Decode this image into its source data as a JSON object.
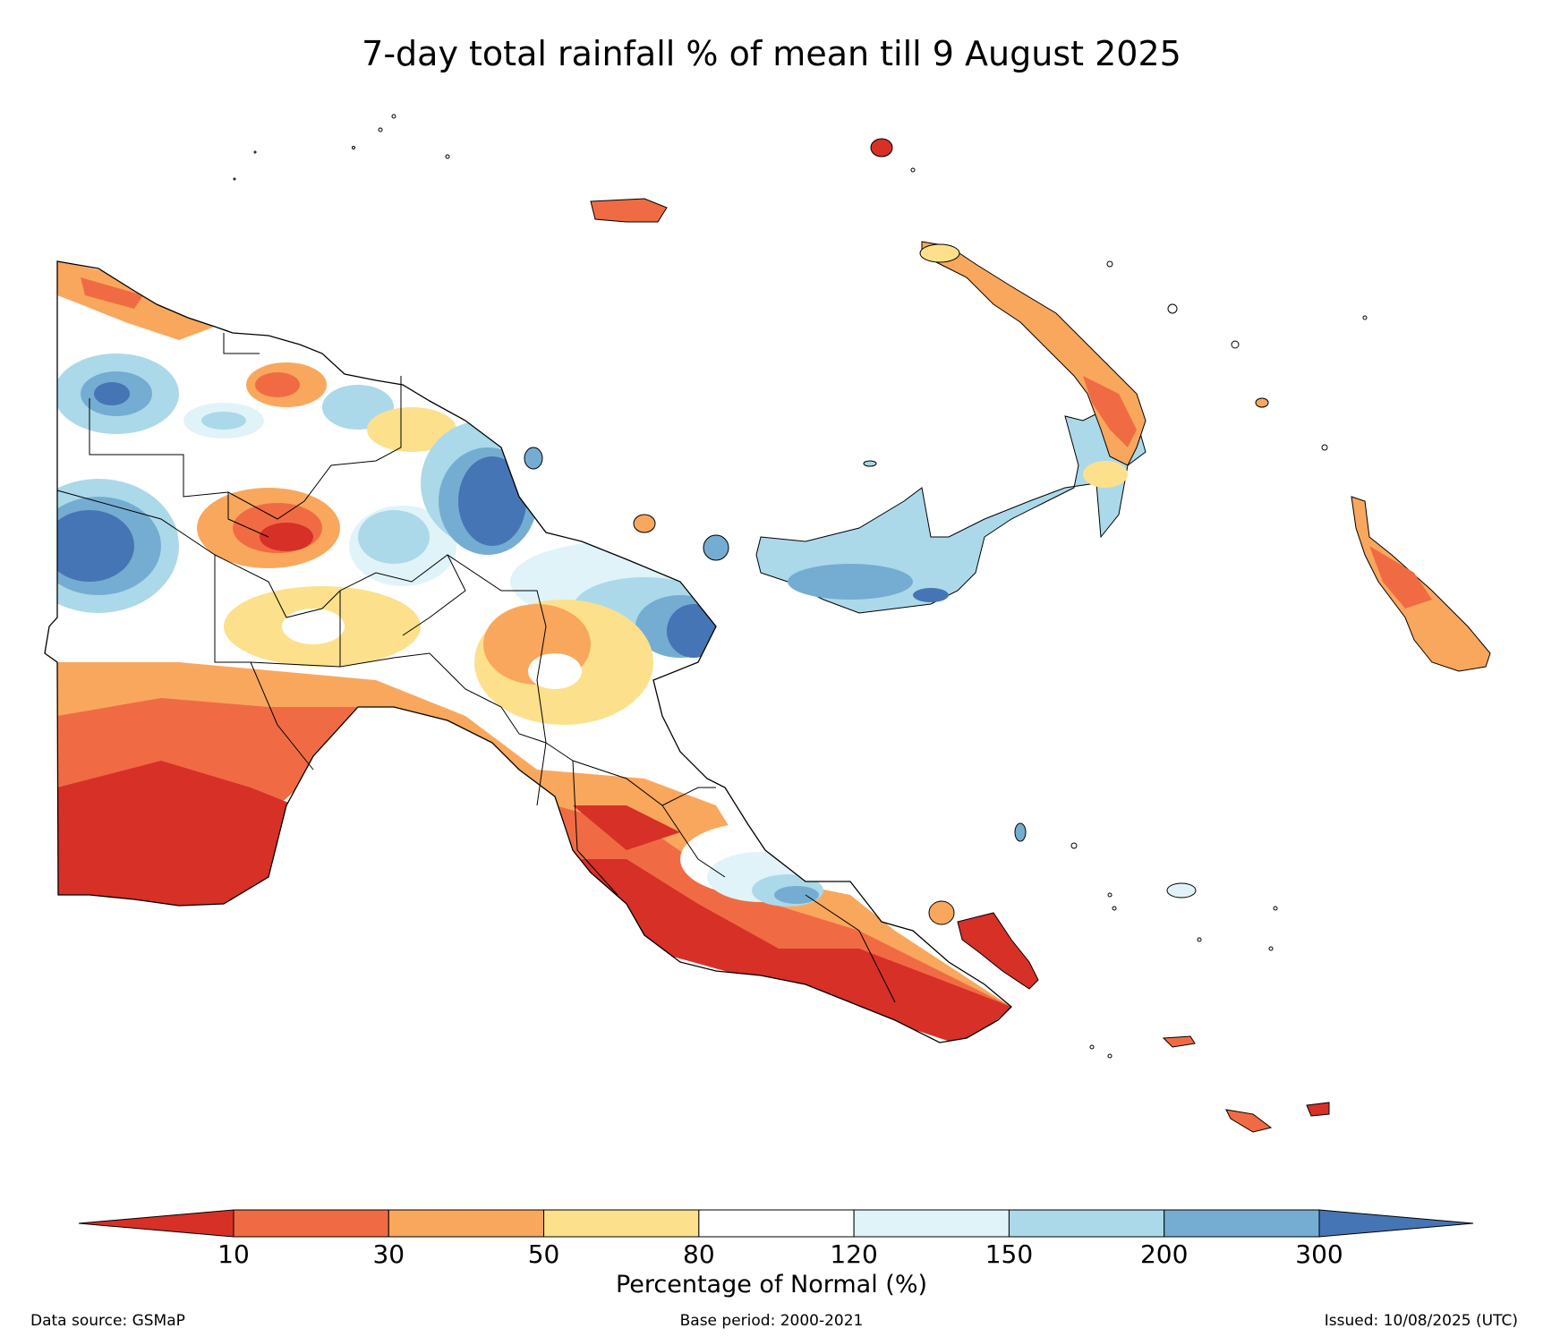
{
  "title": "7-day total rainfall % of mean till 9 August 2025",
  "colorbar": {
    "label": "Percentage of Normal (%)",
    "ticks": [
      "10",
      "30",
      "50",
      "80",
      "120",
      "150",
      "200",
      "300"
    ],
    "bins": [
      {
        "range": "<10",
        "color": "#d73027"
      },
      {
        "range": "10-30",
        "color": "#f06b43"
      },
      {
        "range": "30-50",
        "color": "#f9a75c"
      },
      {
        "range": "50-80",
        "color": "#fde08b"
      },
      {
        "range": "80-120",
        "color": "#ffffff"
      },
      {
        "range": "120-150",
        "color": "#e0f3f8"
      },
      {
        "range": "150-200",
        "color": "#abd9e9"
      },
      {
        "range": "200-300",
        "color": "#74add1"
      },
      {
        "range": ">300",
        "color": "#4575b4"
      }
    ]
  },
  "footer": {
    "source": "Data source: GSMaP",
    "base_period": "Base period: 2000-2021",
    "issued": "Issued: 10/08/2025 (UTC)"
  },
  "map": {
    "region_shown": "Papua New Guinea",
    "field": "7-day total rainfall % of mean"
  }
}
